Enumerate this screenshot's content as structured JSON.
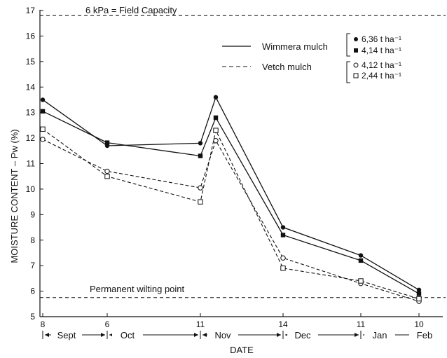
{
  "chart_data": {
    "type": "line",
    "ylabel": "MOISTURE CONTENT – Pw (%)",
    "xlabel": "DATE",
    "ylim": [
      5,
      17
    ],
    "yticks": [
      "5",
      "6",
      "7",
      "8",
      "9",
      "10",
      "11",
      "12",
      "13",
      "14",
      "15",
      "16",
      "17"
    ],
    "x_day_ticks": [
      "8",
      "6",
      "11",
      "14",
      "11",
      "10"
    ],
    "months": [
      "Sept",
      "Oct",
      "Nov",
      "Dec",
      "Jan",
      "Feb"
    ],
    "reference_lines": [
      {
        "label": "6 kPa = Field Capacity",
        "value": 16.8
      },
      {
        "label": "Permanent wilting point",
        "value": 5.75
      }
    ],
    "legend": {
      "position": "top-right",
      "lines": [
        {
          "label": "Wimmera mulch",
          "style": "solid"
        },
        {
          "label": "Vetch mulch",
          "style": "dashed"
        }
      ],
      "markers": [
        {
          "label": "6,36  t  ha⁻¹",
          "marker": "filled-circle"
        },
        {
          "label": "4,14  t  ha⁻¹",
          "marker": "filled-square"
        },
        {
          "label": "4,12  t  ha⁻¹",
          "marker": "open-circle"
        },
        {
          "label": "2,44  t  ha⁻¹",
          "marker": "open-square"
        }
      ]
    },
    "series": [
      {
        "marker": "filled-circle",
        "style": "solid",
        "points": [
          [
            "8 Sept",
            13.5
          ],
          [
            "6 Oct",
            11.7
          ],
          [
            "11 Nov",
            11.8
          ],
          [
            "11 Nov",
            13.6
          ],
          [
            "14 Dec",
            8.5
          ],
          [
            "11 Jan",
            7.4
          ],
          [
            "10 Feb",
            6.05
          ]
        ]
      },
      {
        "marker": "filled-square",
        "style": "solid",
        "points": [
          [
            "8 Sept",
            13.05
          ],
          [
            "6 Oct",
            11.82
          ],
          [
            "11 Nov",
            11.3
          ],
          [
            "11 Nov",
            12.8
          ],
          [
            "14 Dec",
            8.2
          ],
          [
            "11 Jan",
            7.2
          ],
          [
            "10 Feb",
            5.9
          ]
        ]
      },
      {
        "marker": "open-circle",
        "style": "dashed",
        "points": [
          [
            "8 Sept",
            11.95
          ],
          [
            "6 Oct",
            10.7
          ],
          [
            "11 Nov",
            10.05
          ],
          [
            "11 Nov",
            11.9
          ],
          [
            "14 Dec",
            7.3
          ],
          [
            "11 Jan",
            6.3
          ],
          [
            "10 Feb",
            5.6
          ]
        ]
      },
      {
        "marker": "open-square",
        "style": "dashed",
        "points": [
          [
            "8 Sept",
            12.35
          ],
          [
            "6 Oct",
            10.5
          ],
          [
            "11 Nov",
            9.5
          ],
          [
            "11 Nov",
            12.3
          ],
          [
            "14 Dec",
            6.9
          ],
          [
            "11 Jan",
            6.4
          ],
          [
            "10 Feb",
            5.7
          ]
        ]
      }
    ]
  },
  "colors": {
    "ink": "#111111",
    "background": "#ffffff"
  }
}
